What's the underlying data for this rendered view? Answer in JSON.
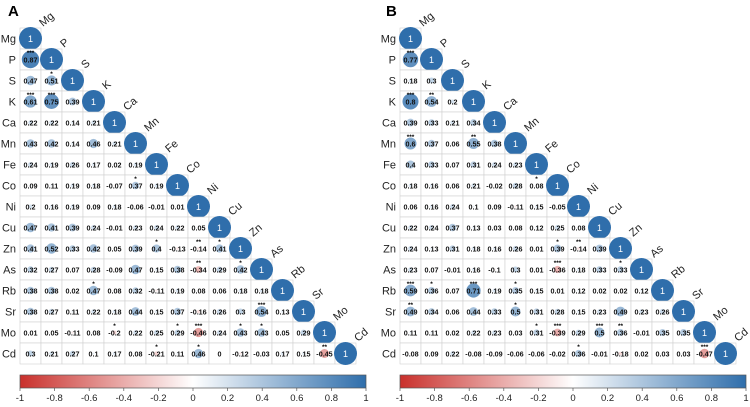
{
  "panels": [
    {
      "label": "A",
      "variables": [
        "Mg",
        "P",
        "S",
        "K",
        "Ca",
        "Mn",
        "Fe",
        "Co",
        "Ni",
        "Cu",
        "Zn",
        "As",
        "Rb",
        "Sr",
        "Mo",
        "Cd"
      ],
      "rows": [
        [
          1
        ],
        [
          0.87,
          1
        ],
        [
          0.47,
          0.51,
          1
        ],
        [
          0.61,
          0.75,
          0.39,
          1
        ],
        [
          0.22,
          0.22,
          0.14,
          0.21,
          1
        ],
        [
          0.43,
          0.42,
          0.14,
          0.46,
          0.21,
          1
        ],
        [
          0.24,
          0.19,
          0.26,
          0.17,
          0.02,
          0.19,
          1
        ],
        [
          0.09,
          0.11,
          0.19,
          0.18,
          -0.07,
          0.37,
          0.19,
          1
        ],
        [
          0.2,
          0.16,
          0.19,
          0.09,
          0.18,
          -0.06,
          -0.01,
          0.01,
          1
        ],
        [
          0.47,
          0.41,
          0.39,
          0.24,
          -0.01,
          0.23,
          0.24,
          0.22,
          0.05,
          1
        ],
        [
          0.41,
          0.52,
          0.33,
          0.42,
          0.05,
          0.39,
          0.4,
          -0.13,
          -0.14,
          0.41,
          1
        ],
        [
          0.32,
          0.27,
          0.07,
          0.28,
          -0.09,
          0.47,
          0.15,
          0.38,
          -0.34,
          0.29,
          0.42,
          1
        ],
        [
          0.38,
          0.38,
          0.02,
          0.47,
          0.08,
          0.32,
          -0.11,
          0.19,
          0.08,
          0.06,
          0.18,
          0.18,
          1
        ],
        [
          0.38,
          0.27,
          0.11,
          0.22,
          0.18,
          0.44,
          0.15,
          0.37,
          -0.16,
          0.26,
          0.3,
          0.54,
          0.13,
          1
        ],
        [
          0.01,
          0.05,
          -0.11,
          0.08,
          -0.2,
          0.22,
          0.25,
          0.29,
          -0.46,
          0.24,
          0.43,
          0.43,
          0.05,
          0.29,
          1
        ],
        [
          0.3,
          0.21,
          0.27,
          0.1,
          0.17,
          0.08,
          -0.21,
          0.11,
          0.46,
          0,
          -0.12,
          -0.03,
          0.17,
          0.15,
          -0.45,
          1
        ]
      ],
      "stars": {
        "1_0": "***",
        "2_1": "*",
        "3_0": "***",
        "3_1": "***",
        "7_5": "*",
        "10_6": "*",
        "10_8": "**",
        "10_9": "*",
        "11_8": "**",
        "11_10": "*",
        "12_3": "*",
        "14_4": "*",
        "14_7": "*",
        "14_8": "***",
        "13_11": "***",
        "14_10": "*",
        "14_11": "*",
        "15_14": "**",
        "15_6": "*",
        "15_8": "*"
      }
    },
    {
      "label": "B",
      "variables": [
        "Mg",
        "P",
        "S",
        "K",
        "Ca",
        "Mn",
        "Fe",
        "Co",
        "Ni",
        "Cu",
        "Zn",
        "As",
        "Rb",
        "Sr",
        "Mo",
        "Cd"
      ],
      "rows": [
        [
          1
        ],
        [
          0.77,
          1
        ],
        [
          0.18,
          0.3,
          1
        ],
        [
          0.8,
          0.54,
          0.2,
          1
        ],
        [
          0.39,
          0.33,
          0.21,
          0.34,
          1
        ],
        [
          0.6,
          0.37,
          0.06,
          0.55,
          0.38,
          1
        ],
        [
          0.4,
          0.33,
          0.07,
          0.31,
          0.24,
          0.23,
          1
        ],
        [
          0.18,
          0.16,
          0.06,
          0.21,
          -0.02,
          0.28,
          0.08,
          1
        ],
        [
          0.06,
          0.16,
          0.24,
          0.1,
          0.09,
          -0.11,
          0.15,
          -0.05,
          1
        ],
        [
          0.22,
          0.24,
          0.37,
          0.13,
          0.03,
          0.08,
          0.12,
          0.25,
          0.08,
          1
        ],
        [
          0.24,
          0.13,
          0.31,
          0.18,
          0.16,
          0.26,
          0.01,
          0.39,
          -0.14,
          0.39,
          1
        ],
        [
          0.23,
          0.07,
          -0.01,
          0.16,
          -0.1,
          0.3,
          0.01,
          -0.36,
          0.18,
          0.33,
          0.33,
          1
        ],
        [
          0.59,
          0.36,
          0.07,
          0.71,
          0.19,
          0.35,
          0.15,
          0.01,
          0.12,
          0.02,
          0.02,
          0.12,
          1
        ],
        [
          0.49,
          0.34,
          0.06,
          0.44,
          0.33,
          0.5,
          0.31,
          0.28,
          0.15,
          0.23,
          0.49,
          0.23,
          0.26,
          1
        ],
        [
          0.11,
          0.11,
          0.02,
          0.22,
          0.23,
          0.03,
          0.31,
          -0.39,
          0.29,
          0.5,
          0.36,
          -0.01,
          0.35,
          0.35,
          1
        ],
        [
          -0.08,
          0.09,
          0.22,
          -0.08,
          -0.09,
          -0.06,
          -0.06,
          -0.02,
          0.36,
          -0.01,
          -0.18,
          0.02,
          0.03,
          0.03,
          -0.47,
          1
        ]
      ],
      "stars": {
        "1_0": "***",
        "3_0": "***",
        "3_1": "**",
        "5_0": "***",
        "5_3": "**",
        "7_6": "*",
        "10_7": "*",
        "10_8": "**",
        "11_7": "***",
        "12_0": "***",
        "12_1": "*",
        "12_3": "***",
        "12_5": "*",
        "13_0": "**",
        "13_5": "*",
        "14_6": "*",
        "14_7": "***",
        "14_9": "***",
        "14_10": "**",
        "15_14": "***",
        "15_8": "*",
        "11_10": "*"
      }
    }
  ],
  "colorbar": {
    "ticks": [
      "-1",
      "-0.8",
      "-0.6",
      "-0.4",
      "-0.2",
      "0",
      "0.2",
      "0.4",
      "0.6",
      "0.8",
      "1"
    ],
    "neg_color": "#c9302c",
    "zero_color": "#ffffff",
    "pos_color": "#2f6eab"
  },
  "chart_data": [
    {
      "type": "heatmap",
      "title": "A",
      "variables": [
        "Mg",
        "P",
        "S",
        "K",
        "Ca",
        "Mn",
        "Fe",
        "Co",
        "Ni",
        "Cu",
        "Zn",
        "As",
        "Rb",
        "Sr",
        "Mo",
        "Cd"
      ],
      "color_range": [
        -1,
        1
      ]
    },
    {
      "type": "heatmap",
      "title": "B",
      "variables": [
        "Mg",
        "P",
        "S",
        "K",
        "Ca",
        "Mn",
        "Fe",
        "Co",
        "Ni",
        "Cu",
        "Zn",
        "As",
        "Rb",
        "Sr",
        "Mo",
        "Cd"
      ],
      "color_range": [
        -1,
        1
      ]
    }
  ]
}
